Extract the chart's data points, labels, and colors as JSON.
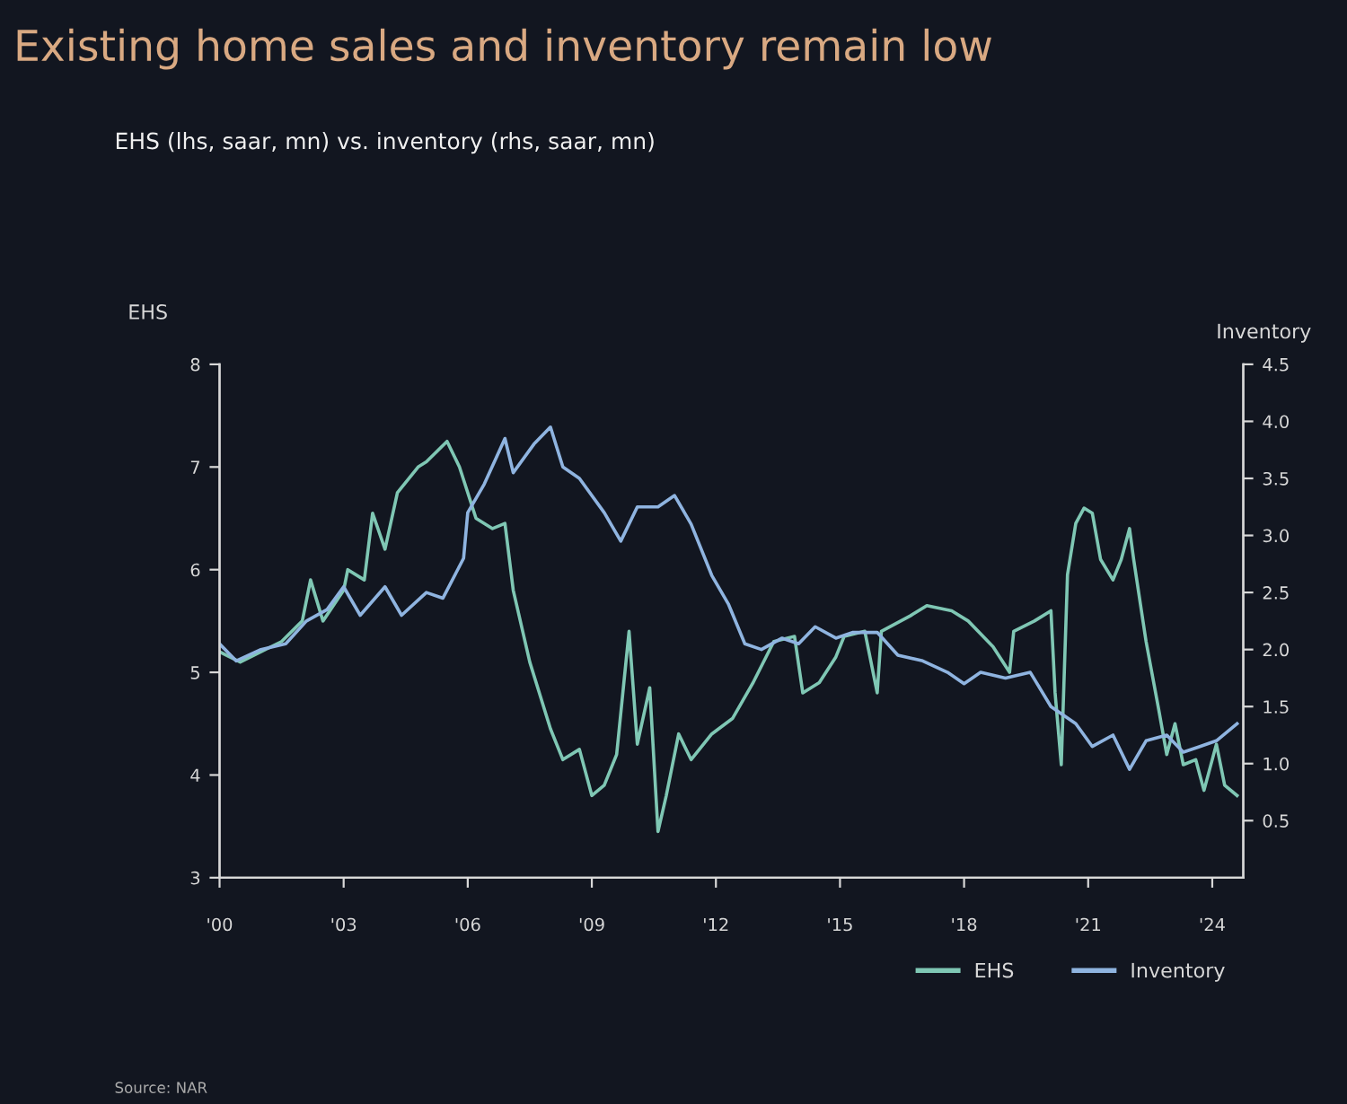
{
  "chart_data": {
    "type": "line",
    "title": "Existing home sales and inventory remain low",
    "subtitle": "EHS (lhs, saar, mn) vs. inventory (rhs, saar, mn)",
    "ylabel": "EHS",
    "y2label": "Inventory",
    "xlim": [
      2000,
      2024.75
    ],
    "xticks": [
      {
        "value": 2000,
        "label": "'00"
      },
      {
        "value": 2003,
        "label": "'03"
      },
      {
        "value": 2006,
        "label": "'06"
      },
      {
        "value": 2009,
        "label": "'09"
      },
      {
        "value": 2012,
        "label": "'12"
      },
      {
        "value": 2015,
        "label": "'15"
      },
      {
        "value": 2018,
        "label": "'18"
      },
      {
        "value": 2021,
        "label": "'21"
      },
      {
        "value": 2024,
        "label": "'24"
      }
    ],
    "ylim": [
      3,
      8
    ],
    "yticks": [
      3,
      4,
      5,
      6,
      7,
      8
    ],
    "y2lim": [
      0,
      4.5
    ],
    "y2ticks": [
      0.5,
      {
        "value": 1,
        "label": "1.0"
      },
      1.5,
      {
        "value": 2,
        "label": "2.0"
      },
      2.5,
      {
        "value": 3,
        "label": "3.0"
      },
      3.5,
      {
        "value": 4,
        "label": "4.0"
      },
      4.5
    ],
    "grid": false,
    "legend": "bottom right",
    "series": [
      {
        "name": "EHS",
        "color": "#7fc7b4",
        "x": [
          2000.0,
          2000.5,
          2001.0,
          2001.5,
          2002.0,
          2002.2,
          2002.5,
          2003.0,
          2003.1,
          2003.5,
          2003.7,
          2004.0,
          2004.3,
          2004.8,
          2005.0,
          2005.5,
          2005.8,
          2006.2,
          2006.6,
          2006.9,
          2007.1,
          2007.5,
          2008.0,
          2008.3,
          2008.7,
          2009.0,
          2009.3,
          2009.6,
          2009.9,
          2010.1,
          2010.4,
          2010.6,
          2010.8,
          2011.1,
          2011.4,
          2011.9,
          2012.4,
          2012.9,
          2013.4,
          2013.9,
          2014.1,
          2014.5,
          2014.9,
          2015.1,
          2015.6,
          2015.9,
          2016.0,
          2016.7,
          2017.1,
          2017.7,
          2018.1,
          2018.7,
          2019.1,
          2019.2,
          2019.7,
          2020.1,
          2020.2,
          2020.35,
          2020.5,
          2020.7,
          2020.9,
          2021.1,
          2021.3,
          2021.6,
          2021.8,
          2022.0,
          2022.1,
          2022.4,
          2022.7,
          2022.9,
          2023.1,
          2023.3,
          2023.6,
          2023.8,
          2024.1,
          2024.3,
          2024.6
        ],
        "values": [
          5.2,
          5.1,
          5.2,
          5.3,
          5.5,
          5.9,
          5.5,
          5.8,
          6.0,
          5.9,
          6.55,
          6.2,
          6.75,
          7.0,
          7.05,
          7.25,
          7.0,
          6.5,
          6.4,
          6.45,
          5.8,
          5.1,
          4.45,
          4.15,
          4.25,
          3.8,
          3.9,
          4.2,
          5.4,
          4.3,
          4.85,
          3.45,
          3.8,
          4.4,
          4.15,
          4.4,
          4.55,
          4.9,
          5.3,
          5.35,
          4.8,
          4.9,
          5.15,
          5.35,
          5.4,
          4.8,
          5.4,
          5.55,
          5.65,
          5.6,
          5.5,
          5.25,
          5.0,
          5.4,
          5.5,
          5.6,
          4.8,
          4.1,
          5.95,
          6.45,
          6.6,
          6.55,
          6.1,
          5.9,
          6.1,
          6.4,
          6.1,
          5.3,
          4.65,
          4.2,
          4.5,
          4.1,
          4.15,
          3.85,
          4.3,
          3.9,
          3.8
        ]
      },
      {
        "name": "Inventory",
        "color": "#8fb4e0",
        "axis": "y2",
        "x": [
          2000.0,
          2000.4,
          2001.0,
          2001.6,
          2002.1,
          2002.6,
          2003.0,
          2003.4,
          2004.0,
          2004.4,
          2005.0,
          2005.4,
          2005.9,
          2006.0,
          2006.4,
          2006.9,
          2007.1,
          2007.6,
          2008.0,
          2008.3,
          2008.7,
          2009.3,
          2009.7,
          2010.1,
          2010.6,
          2011.0,
          2011.4,
          2011.9,
          2012.3,
          2012.7,
          2013.1,
          2013.6,
          2014.0,
          2014.4,
          2014.9,
          2015.3,
          2015.9,
          2016.4,
          2017.0,
          2017.6,
          2018.0,
          2018.4,
          2019.0,
          2019.6,
          2020.1,
          2020.7,
          2021.1,
          2021.6,
          2022.0,
          2022.4,
          2022.9,
          2023.3,
          2023.7,
          2024.1,
          2024.6
        ],
        "values": [
          2.05,
          1.9,
          2.0,
          2.05,
          2.25,
          2.35,
          2.55,
          2.3,
          2.55,
          2.3,
          2.5,
          2.45,
          2.8,
          3.2,
          3.45,
          3.85,
          3.55,
          3.8,
          3.95,
          3.6,
          3.5,
          3.2,
          2.95,
          3.25,
          3.25,
          3.35,
          3.1,
          2.65,
          2.4,
          2.05,
          2.0,
          2.1,
          2.05,
          2.2,
          2.1,
          2.15,
          2.15,
          1.95,
          1.9,
          1.8,
          1.7,
          1.8,
          1.75,
          1.8,
          1.5,
          1.35,
          1.15,
          1.25,
          0.95,
          1.2,
          1.25,
          1.1,
          1.15,
          1.2,
          1.35
        ]
      }
    ],
    "annotations": [
      "Source: NAR"
    ]
  }
}
